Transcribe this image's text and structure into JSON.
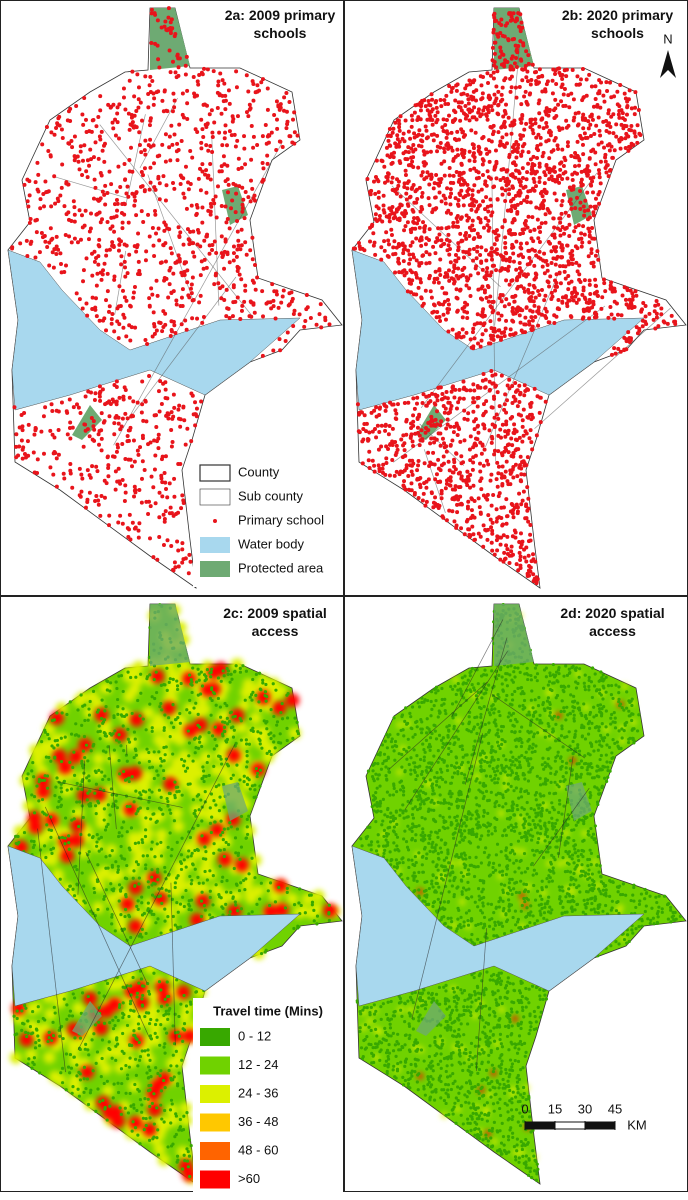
{
  "panels": [
    {
      "title": "2a: 2009 primary schools"
    },
    {
      "title": "2b: 2020 primary schools"
    },
    {
      "title": "2c: 2009 spatial access"
    },
    {
      "title": "2d: 2020 spatial access"
    }
  ],
  "north": "N",
  "legend": [
    {
      "label": "County"
    },
    {
      "label": "Sub county"
    },
    {
      "label": "Primary school",
      "color": "#e8141b"
    },
    {
      "label": "Water body",
      "color": "#a8d8ee"
    },
    {
      "label": "Protected area",
      "color": "#6eaa73"
    }
  ],
  "travel_legend": {
    "title": "Travel time (Mins)",
    "items": [
      {
        "label": "0 - 12",
        "color": "#38a800"
      },
      {
        "label": "12 - 24",
        "color": "#70d200"
      },
      {
        "label": "24 - 36",
        "color": "#dcf000"
      },
      {
        "label": "36 - 48",
        "color": "#ffc800"
      },
      {
        "label": "48 - 60",
        "color": "#ff6400"
      },
      {
        "label": ">60",
        "color": "#ff0000"
      }
    ]
  },
  "scale_bar": {
    "ticks": [
      0,
      15,
      30,
      45
    ],
    "unit": "KM"
  }
}
